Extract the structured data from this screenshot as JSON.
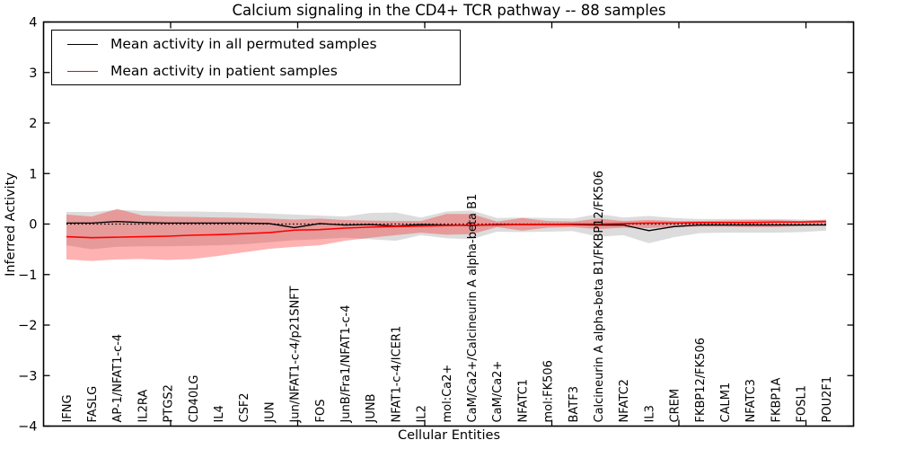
{
  "chart_data": {
    "type": "line",
    "title": "Calcium signaling in the CD4+ TCR pathway -- 88 samples",
    "xlabel": "Cellular Entities",
    "ylabel": "Inferred Activity",
    "ylim": [
      -4,
      4
    ],
    "ytick_labels": [
      "4",
      "3",
      "2",
      "1",
      "0",
      "−1",
      "−2",
      "−3",
      "−4"
    ],
    "ytick_values": [
      4,
      3,
      2,
      1,
      0,
      -1,
      -2,
      -3,
      -4
    ],
    "grid": false,
    "legend_position": "upper left",
    "zero_line": true,
    "categories": [
      "IFNG",
      "FASLG",
      "AP-1/NFAT1-c-4",
      "IL2RA",
      "PTGS2",
      "CD40LG",
      "IL4",
      "CSF2",
      "JUN",
      "Jun/NFAT1-c-4/p21SNFT",
      "FOS",
      "JunB/Fra1/NFAT1-c-4",
      "JUNB",
      "NFAT1-c-4/ICER1",
      "IL2",
      "mol:Ca2+",
      "CaM/Ca2+/Calcineurin A alpha-beta B1",
      "CaM/Ca2+",
      "NFATC1",
      "mol:FK506",
      "BATF3",
      "Calcineurin A alpha-beta B1/FKBP12/FK506",
      "NFATC2",
      "IL3",
      "CREM",
      "FKBP12/FK506",
      "CALM1",
      "NFATC3",
      "FKBP1A",
      "FOSL1",
      "POU2F1"
    ],
    "series": [
      {
        "name": "Mean activity in all permuted samples",
        "color": "#000000",
        "values": [
          0.02,
          0.02,
          0.05,
          0.03,
          0.02,
          0.02,
          0.02,
          0.02,
          0.01,
          -0.07,
          0.01,
          -0.02,
          -0.01,
          -0.04,
          -0.01,
          -0.02,
          -0.03,
          -0.01,
          -0.01,
          -0.01,
          -0.01,
          -0.02,
          -0.02,
          -0.13,
          -0.05,
          -0.02,
          -0.02,
          -0.02,
          -0.02,
          -0.02,
          -0.02
        ]
      },
      {
        "name": "Mean activity in patient samples",
        "color": "#ff0000",
        "values": [
          -0.25,
          -0.27,
          -0.26,
          -0.25,
          -0.24,
          -0.22,
          -0.21,
          -0.19,
          -0.17,
          -0.12,
          -0.11,
          -0.08,
          -0.06,
          -0.05,
          -0.04,
          -0.03,
          -0.02,
          -0.02,
          -0.01,
          -0.01,
          0.0,
          0.0,
          0.01,
          0.02,
          0.02,
          0.03,
          0.03,
          0.03,
          0.04,
          0.04,
          0.05
        ]
      }
    ],
    "bands": [
      {
        "name": "permuted samples range",
        "color": "rgba(128,128,128,0.28)",
        "upper": [
          0.24,
          0.24,
          0.28,
          0.26,
          0.25,
          0.25,
          0.24,
          0.23,
          0.21,
          0.19,
          0.17,
          0.15,
          0.22,
          0.23,
          0.13,
          0.25,
          0.27,
          0.12,
          0.13,
          0.12,
          0.11,
          0.2,
          0.13,
          0.16,
          0.12,
          0.1,
          0.1,
          0.1,
          0.1,
          0.09,
          0.08
        ],
        "lower": [
          -0.42,
          -0.5,
          -0.45,
          -0.44,
          -0.44,
          -0.43,
          -0.42,
          -0.4,
          -0.36,
          -0.32,
          -0.3,
          -0.27,
          -0.3,
          -0.33,
          -0.22,
          -0.28,
          -0.3,
          -0.15,
          -0.16,
          -0.15,
          -0.14,
          -0.25,
          -0.22,
          -0.38,
          -0.26,
          -0.18,
          -0.17,
          -0.17,
          -0.17,
          -0.16,
          -0.13
        ]
      },
      {
        "name": "patient samples range",
        "color": "rgba(255,20,20,0.33)",
        "upper": [
          0.19,
          0.15,
          0.3,
          0.17,
          0.15,
          0.14,
          0.13,
          0.12,
          0.11,
          0.09,
          0.11,
          0.08,
          0.07,
          0.06,
          0.06,
          0.2,
          0.2,
          0.05,
          0.12,
          0.06,
          0.05,
          0.11,
          0.06,
          0.08,
          0.06,
          0.06,
          0.07,
          0.08,
          0.08,
          0.06,
          0.09
        ],
        "lower": [
          -0.7,
          -0.73,
          -0.7,
          -0.69,
          -0.71,
          -0.69,
          -0.63,
          -0.56,
          -0.49,
          -0.45,
          -0.42,
          -0.33,
          -0.27,
          -0.22,
          -0.17,
          -0.21,
          -0.2,
          -0.06,
          -0.13,
          -0.07,
          -0.06,
          -0.1,
          -0.07,
          -0.08,
          -0.06,
          -0.05,
          -0.05,
          -0.06,
          -0.06,
          -0.04,
          -0.02
        ]
      }
    ]
  }
}
